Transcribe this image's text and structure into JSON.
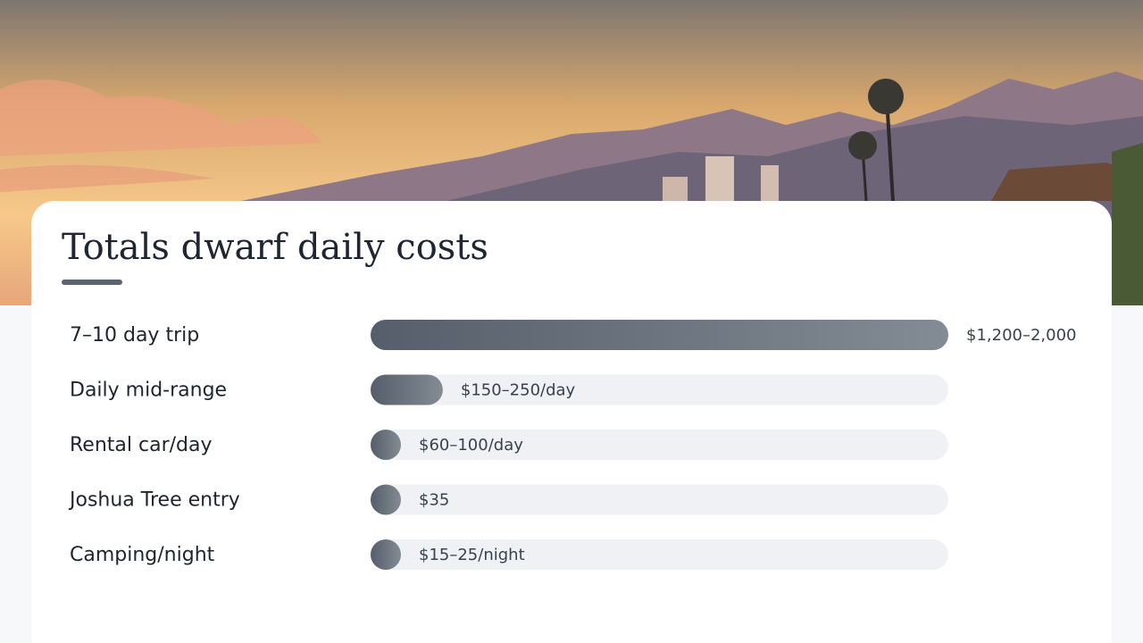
{
  "chart_data": {
    "type": "bar",
    "title": "Totals dwarf daily costs",
    "categories": [
      "7–10 day trip",
      "Daily mid-range",
      "Rental car/day",
      "Joshua Tree entry",
      "Camping/night"
    ],
    "values": [
      2000,
      250,
      100,
      35,
      25
    ],
    "value_labels": [
      "$1,200–2,000",
      "$150–250/day",
      "$60–100/day",
      "$35",
      "$15–25/night"
    ],
    "color": "#5c6570",
    "xlim": [
      0,
      2000
    ]
  }
}
